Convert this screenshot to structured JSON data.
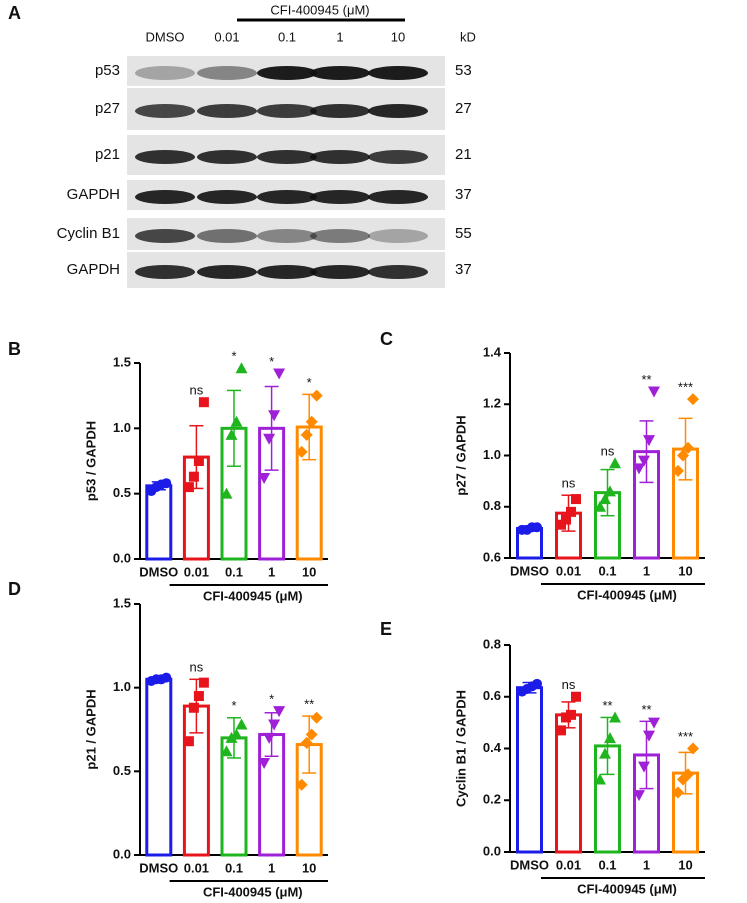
{
  "blot": {
    "label": "A",
    "treatment": "CFI-400945 (μM)",
    "unit": "kD",
    "lanes": [
      "DMSO",
      "0.01",
      "0.1",
      "1",
      "10"
    ],
    "rows": [
      {
        "name": "p53",
        "kd": "53"
      },
      {
        "name": "p27",
        "kd": "27"
      },
      {
        "name": "p21",
        "kd": "21"
      },
      {
        "name": "GAPDH",
        "kd": "37"
      },
      {
        "name": "Cyclin B1",
        "kd": "55"
      },
      {
        "name": "GAPDH",
        "kd": "37"
      }
    ]
  },
  "chart_data": [
    {
      "type": "bar",
      "panel": "B",
      "ylabel": "p53 / GAPDH",
      "group_label": "CFI-400945 (μM)",
      "categories": [
        "DMSO",
        "0.01",
        "0.1",
        "1",
        "10"
      ],
      "colors": [
        "#1c1ce8",
        "#e8141c",
        "#1fb51f",
        "#a020d8",
        "#ff8a00"
      ],
      "markers": [
        "circle",
        "square",
        "triangle-up",
        "triangle-down",
        "diamond"
      ],
      "values": [
        0.56,
        0.78,
        1.0,
        1.0,
        1.01
      ],
      "errors": [
        0.03,
        0.24,
        0.29,
        0.32,
        0.25
      ],
      "points": [
        [
          0.52,
          0.55,
          0.57,
          0.58
        ],
        [
          0.55,
          0.63,
          0.75,
          1.2
        ],
        [
          0.5,
          0.95,
          1.05,
          1.46
        ],
        [
          0.62,
          0.92,
          1.1,
          1.42
        ],
        [
          0.82,
          0.95,
          1.05,
          1.25
        ]
      ],
      "annotations": [
        null,
        "ns",
        "*",
        "*",
        "*"
      ],
      "ylim": [
        0,
        1.5
      ],
      "yticks": [
        {
          "value": 0,
          "label": "0.0"
        },
        0.5,
        {
          "value": 1,
          "label": "1.0"
        },
        1.5
      ]
    },
    {
      "type": "bar",
      "panel": "C",
      "ylabel": "p27 / GAPDH",
      "group_label": "CFI-400945 (μM)",
      "categories": [
        "DMSO",
        "0.01",
        "0.1",
        "1",
        "10"
      ],
      "colors": [
        "#1c1ce8",
        "#e8141c",
        "#1fb51f",
        "#a020d8",
        "#ff8a00"
      ],
      "markers": [
        "circle",
        "square",
        "triangle-up",
        "triangle-down",
        "diamond"
      ],
      "values": [
        0.715,
        0.775,
        0.855,
        1.015,
        1.025
      ],
      "errors": [
        0.01,
        0.07,
        0.09,
        0.12,
        0.12
      ],
      "points": [
        [
          0.71,
          0.71,
          0.72,
          0.72
        ],
        [
          0.73,
          0.75,
          0.78,
          0.83
        ],
        [
          0.8,
          0.83,
          0.86,
          0.97
        ],
        [
          0.95,
          0.98,
          1.06,
          1.25
        ],
        [
          0.94,
          1.0,
          1.03,
          1.22
        ]
      ],
      "annotations": [
        null,
        "ns",
        "ns",
        "**",
        "***"
      ],
      "ylim": [
        0.6,
        1.4
      ],
      "yticks": [
        0.6,
        0.8,
        {
          "value": 1,
          "label": "1.0"
        },
        1.2,
        1.4
      ]
    },
    {
      "type": "bar",
      "panel": "D",
      "ylabel": "p21 / GAPDH",
      "group_label": "CFI-400945 (μM)",
      "categories": [
        "DMSO",
        "0.01",
        "0.1",
        "1",
        "10"
      ],
      "colors": [
        "#1c1ce8",
        "#e8141c",
        "#1fb51f",
        "#a020d8",
        "#ff8a00"
      ],
      "markers": [
        "circle",
        "square",
        "triangle-up",
        "triangle-down",
        "diamond"
      ],
      "values": [
        1.05,
        0.89,
        0.7,
        0.72,
        0.66
      ],
      "errors": [
        0.01,
        0.16,
        0.12,
        0.13,
        0.17
      ],
      "points": [
        [
          1.04,
          1.05,
          1.05,
          1.06
        ],
        [
          0.68,
          0.88,
          0.95,
          1.03
        ],
        [
          0.62,
          0.7,
          0.72,
          0.78
        ],
        [
          0.55,
          0.7,
          0.78,
          0.86
        ],
        [
          0.42,
          0.67,
          0.72,
          0.82
        ]
      ],
      "annotations": [
        null,
        "ns",
        "*",
        "*",
        "**"
      ],
      "ylim": [
        0,
        1.5
      ],
      "yticks": [
        {
          "value": 0,
          "label": "0.0"
        },
        0.5,
        {
          "value": 1,
          "label": "1.0"
        },
        1.5
      ]
    },
    {
      "type": "bar",
      "panel": "E",
      "ylabel": "Cyclin B1 / GAPDH",
      "group_label": "CFI-400945 (μM)",
      "categories": [
        "DMSO",
        "0.01",
        "0.1",
        "1",
        "10"
      ],
      "colors": [
        "#1c1ce8",
        "#e8141c",
        "#1fb51f",
        "#a020d8",
        "#ff8a00"
      ],
      "markers": [
        "circle",
        "square",
        "triangle-up",
        "triangle-down",
        "diamond"
      ],
      "values": [
        0.635,
        0.53,
        0.41,
        0.375,
        0.305
      ],
      "errors": [
        0.02,
        0.05,
        0.11,
        0.13,
        0.08
      ],
      "points": [
        [
          0.62,
          0.63,
          0.64,
          0.65
        ],
        [
          0.47,
          0.52,
          0.53,
          0.6
        ],
        [
          0.28,
          0.38,
          0.44,
          0.52
        ],
        [
          0.22,
          0.33,
          0.45,
          0.5
        ],
        [
          0.23,
          0.28,
          0.3,
          0.4
        ]
      ],
      "annotations": [
        null,
        "ns",
        "**",
        "**",
        "***"
      ],
      "ylim": [
        0,
        0.8
      ],
      "yticks": [
        {
          "value": 0,
          "label": "0.0"
        },
        0.2,
        0.4,
        0.6,
        0.8
      ]
    }
  ]
}
